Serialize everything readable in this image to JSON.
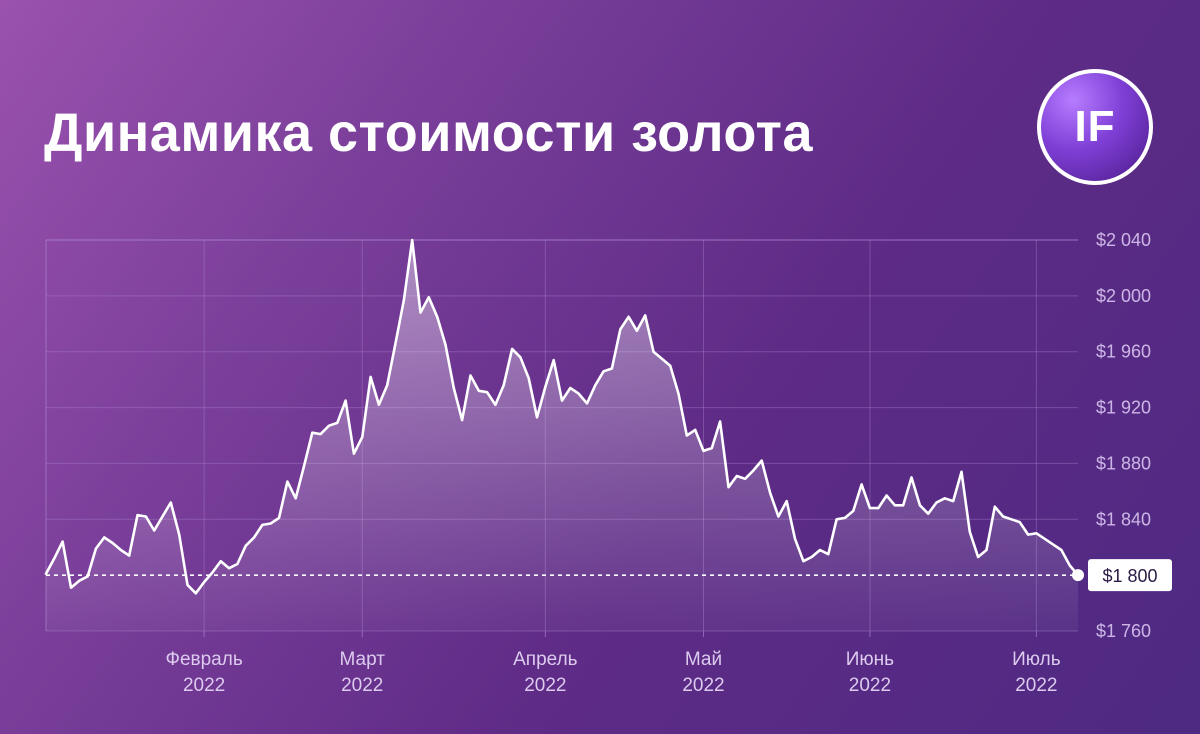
{
  "title": "Динамика стоимости золота",
  "logo": {
    "text": "IF"
  },
  "colors": {
    "line": "#ffffff",
    "area_top": "#ffffff",
    "grid": "#b48fd6",
    "badge_bg": "#ffffff",
    "badge_text": "#2b1a46"
  },
  "chart_data": {
    "type": "area",
    "title": "Динамика стоимости золота",
    "xlabel": "",
    "ylabel": "",
    "ylim": [
      1760,
      2040
    ],
    "grid": true,
    "y_ticks": [
      2040,
      2000,
      1960,
      1920,
      1880,
      1840,
      1800,
      1760
    ],
    "y_tick_labels": [
      "$2 040",
      "$2 000",
      "$1 960",
      "$1 920",
      "$1 880",
      "$1 840",
      "$1 800",
      "$1 760"
    ],
    "x_ticks": [
      {
        "month": "Февраль",
        "year": "2022",
        "index": 19
      },
      {
        "month": "Март",
        "year": "2022",
        "index": 38
      },
      {
        "month": "Апрель",
        "year": "2022",
        "index": 60
      },
      {
        "month": "Май",
        "year": "2022",
        "index": 79
      },
      {
        "month": "Июнь",
        "year": "2022",
        "index": 99
      },
      {
        "month": "Июль",
        "year": "2022",
        "index": 119
      }
    ],
    "reference_line": {
      "value": 1800,
      "label": "$1 800",
      "style": "dashed"
    },
    "series": [
      {
        "values": [
          1801,
          1812,
          1824,
          1791,
          1796,
          1799,
          1819,
          1827,
          1823,
          1818,
          1814,
          1843,
          1842,
          1832,
          1842,
          1852,
          1829,
          1793,
          1787,
          1795,
          1802,
          1810,
          1805,
          1808,
          1821,
          1827,
          1836,
          1837,
          1841,
          1867,
          1855,
          1878,
          1902,
          1901,
          1907,
          1909,
          1925,
          1887,
          1899,
          1942,
          1922,
          1936,
          1966,
          1997,
          2040,
          1988,
          1999,
          1985,
          1965,
          1934,
          1911,
          1943,
          1932,
          1931,
          1922,
          1936,
          1962,
          1956,
          1941,
          1913,
          1935,
          1954,
          1925,
          1934,
          1930,
          1923,
          1936,
          1946,
          1948,
          1976,
          1985,
          1975,
          1986,
          1960,
          1955,
          1950,
          1930,
          1900,
          1904,
          1889,
          1891,
          1910,
          1863,
          1871,
          1869,
          1875,
          1882,
          1859,
          1842,
          1853,
          1826,
          1810,
          1813,
          1818,
          1815,
          1840,
          1841,
          1846,
          1865,
          1848,
          1848,
          1857,
          1850,
          1850,
          1870,
          1850,
          1844,
          1852,
          1855,
          1853,
          1874,
          1831,
          1813,
          1818,
          1849,
          1842,
          1840,
          1838,
          1829,
          1830,
          1826,
          1822,
          1818,
          1807,
          1800
        ]
      }
    ]
  }
}
